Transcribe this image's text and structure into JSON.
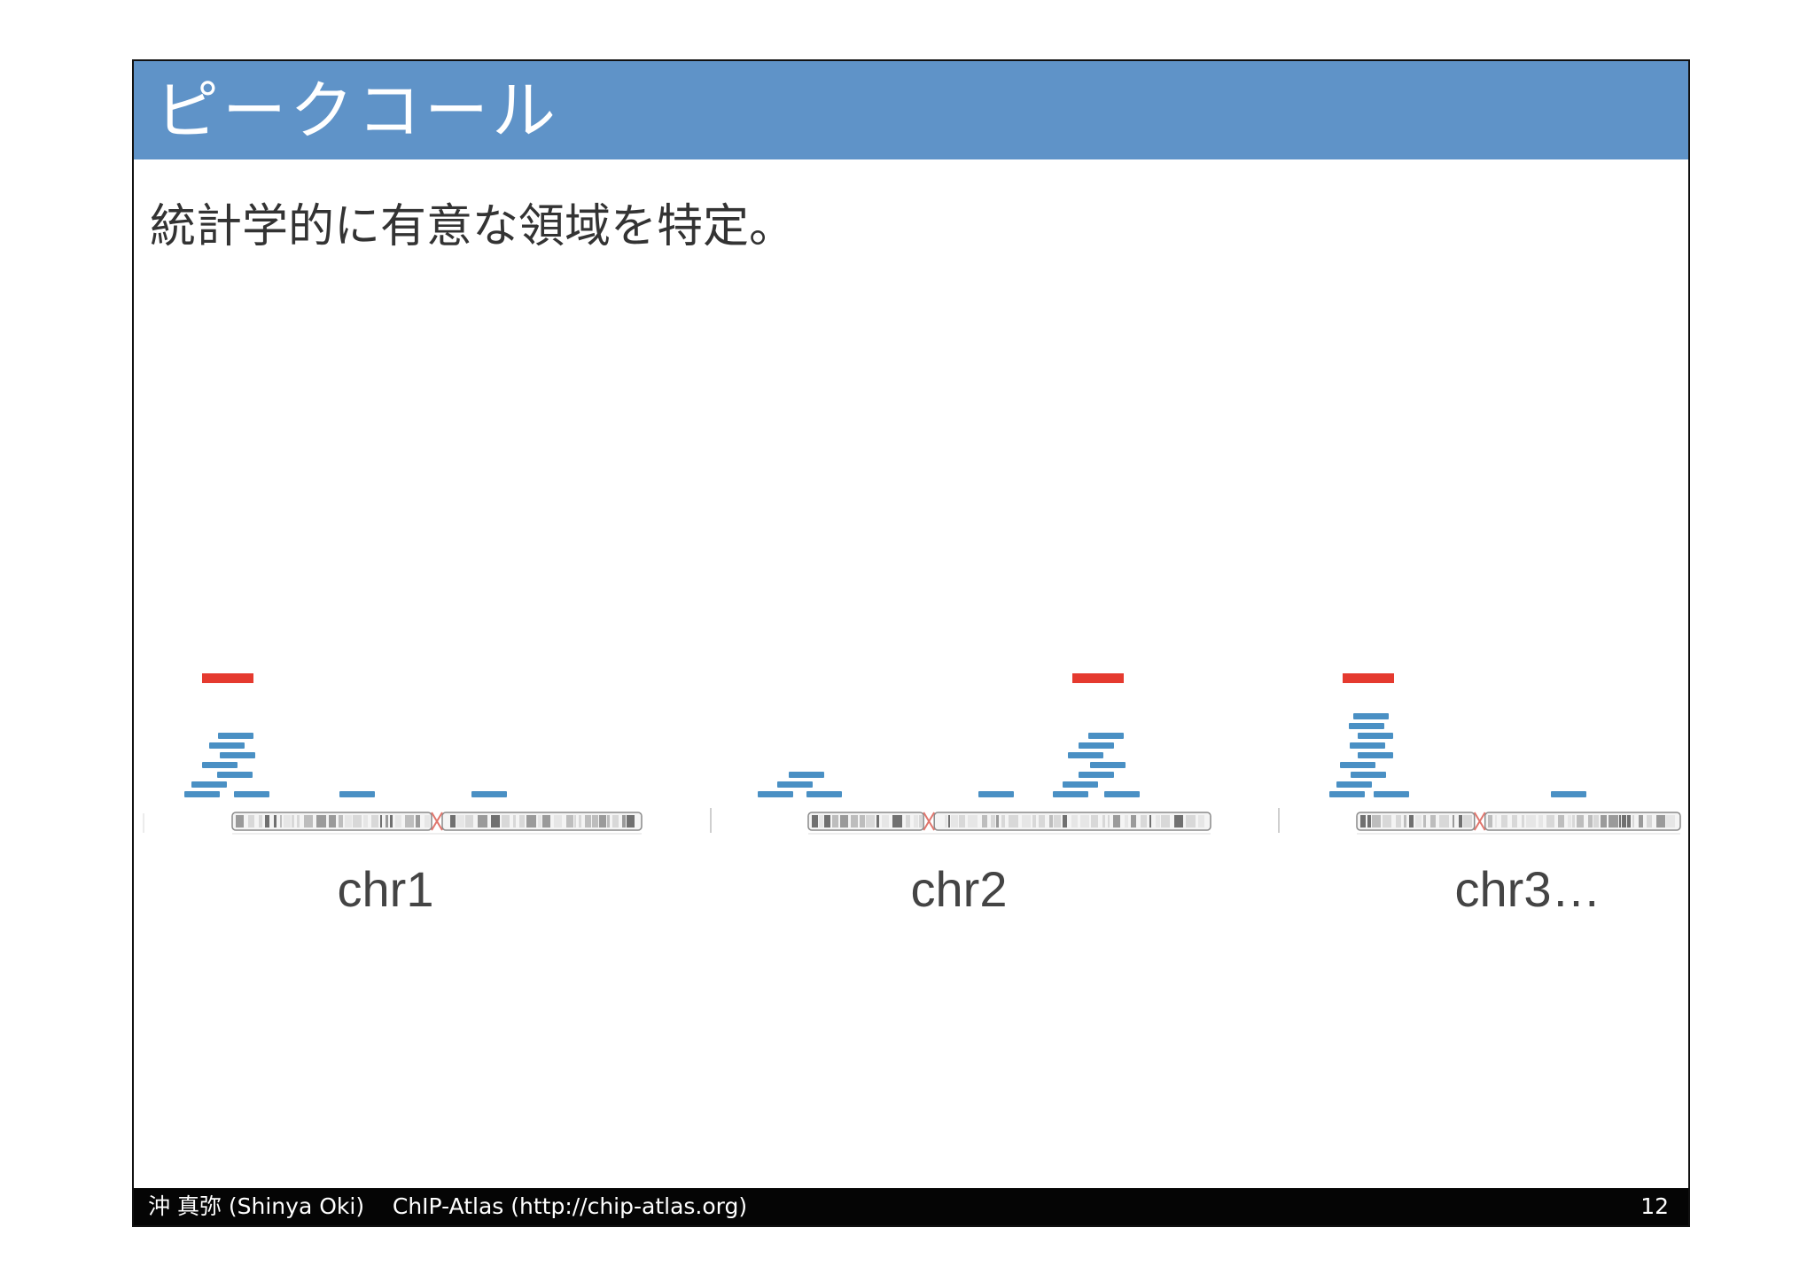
{
  "slide": {
    "title": "ピークコール",
    "subtitle": "統計学的に有意な領域を特定。",
    "footer": {
      "author": "沖 真弥 (Shinya Oki)",
      "project": "ChIP-Atlas (http://chip-atlas.org)",
      "page_number": "12"
    }
  },
  "colors": {
    "title_bar": "#5f93c8",
    "read": "#4a90c4",
    "peak": "#e53a2f",
    "footer": "#050505"
  },
  "chart_data": {
    "type": "diagram",
    "chromosomes": [
      {
        "label": "chr1",
        "peaks": 1,
        "read_clusters": [
          {
            "role": "peak",
            "reads": 8
          },
          {
            "role": "background",
            "reads": 1
          },
          {
            "role": "background",
            "reads": 1
          }
        ]
      },
      {
        "label": "chr2",
        "peaks": 1,
        "read_clusters": [
          {
            "role": "background",
            "reads": 4
          },
          {
            "role": "background",
            "reads": 1
          },
          {
            "role": "peak",
            "reads": 8
          }
        ]
      },
      {
        "label": "chr3…",
        "peaks": 1,
        "read_clusters": [
          {
            "role": "peak",
            "reads": 10
          },
          {
            "role": "background",
            "reads": 1
          }
        ]
      }
    ]
  }
}
